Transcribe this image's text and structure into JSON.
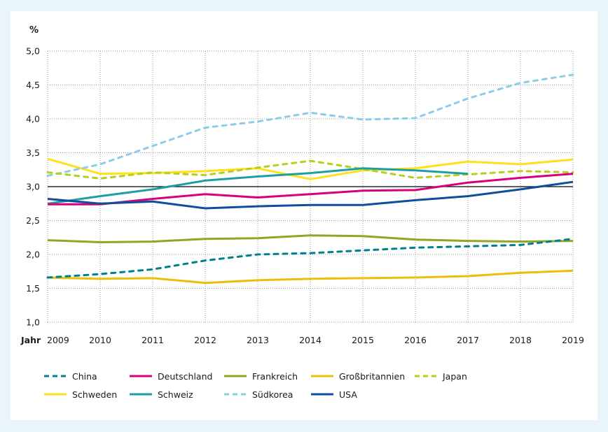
{
  "chart_data": {
    "type": "line",
    "title": "",
    "ylabel": "%",
    "xlabel": "Jahr",
    "ylim": [
      1.0,
      5.0
    ],
    "yticks": [
      1.0,
      1.5,
      2.0,
      2.5,
      3.0,
      3.5,
      4.0,
      4.5,
      5.0
    ],
    "ytick_labels": [
      "1,0",
      "1,5",
      "2,0",
      "2,5",
      "3,0",
      "3,5",
      "4,0",
      "4,5",
      "5,0"
    ],
    "reference_line": 3.0,
    "grid": true,
    "legend_position": "bottom",
    "x": [
      2009,
      2010,
      2011,
      2012,
      2013,
      2014,
      2015,
      2016,
      2017,
      2018,
      2019
    ],
    "xtick_labels": [
      "2009",
      "2010",
      "2011",
      "2012",
      "2013",
      "2014",
      "2015",
      "2016",
      "2017",
      "2018",
      "2019"
    ],
    "series": [
      {
        "name": "China",
        "color": "#00808C",
        "dashed": true,
        "values": [
          1.66,
          1.71,
          1.78,
          1.91,
          2.0,
          2.02,
          2.06,
          2.1,
          2.12,
          2.14,
          2.23
        ]
      },
      {
        "name": "Deutschland",
        "color": "#D9007E",
        "dashed": false,
        "values": [
          2.74,
          2.74,
          2.82,
          2.89,
          2.84,
          2.89,
          2.94,
          2.95,
          3.06,
          3.13,
          3.19
        ]
      },
      {
        "name": "Frankreich",
        "color": "#8FA725",
        "dashed": false,
        "values": [
          2.21,
          2.18,
          2.19,
          2.23,
          2.24,
          2.28,
          2.27,
          2.22,
          2.2,
          2.19,
          2.2
        ]
      },
      {
        "name": "Großbritannien",
        "color": "#EBBE0A",
        "dashed": false,
        "values": [
          1.66,
          1.64,
          1.65,
          1.58,
          1.62,
          1.64,
          1.65,
          1.66,
          1.68,
          1.73,
          1.76
        ]
      },
      {
        "name": "Japan",
        "color": "#B6CE1E",
        "dashed": true,
        "values": [
          3.21,
          3.12,
          3.21,
          3.17,
          3.28,
          3.38,
          3.26,
          3.13,
          3.18,
          3.23,
          3.21
        ]
      },
      {
        "name": "Schweden",
        "color": "#FFE01A",
        "dashed": false,
        "values": [
          3.41,
          3.19,
          3.2,
          3.23,
          3.27,
          3.11,
          3.24,
          3.27,
          3.37,
          3.33,
          3.4
        ]
      },
      {
        "name": "Schweiz",
        "color": "#1D9EA3",
        "dashed": false,
        "values": [
          2.75,
          2.86,
          2.96,
          3.09,
          3.15,
          3.2,
          3.27,
          3.24,
          3.19,
          null,
          null
        ]
      },
      {
        "name": "Südkorea",
        "color": "#8CCCEA",
        "dashed": true,
        "values": [
          3.16,
          3.33,
          3.6,
          3.87,
          3.96,
          4.09,
          3.99,
          4.01,
          4.3,
          4.53,
          4.65
        ]
      },
      {
        "name": "USA",
        "color": "#0F4E9C",
        "dashed": false,
        "values": [
          2.82,
          2.75,
          2.78,
          2.68,
          2.71,
          2.73,
          2.73,
          2.8,
          2.86,
          2.96,
          3.07
        ]
      }
    ],
    "legend_order": [
      [
        "China",
        "Deutschland",
        "Frankreich",
        "Großbritannien",
        "Japan"
      ],
      [
        "Schweden",
        "Schweiz",
        "Südkorea",
        "USA"
      ]
    ]
  },
  "colors": {
    "background": "#EAF4FB",
    "panel": "#FFFFFF",
    "grid": "#9a9a9a",
    "reference_line": "#000000",
    "text": "#1a1a1a"
  }
}
